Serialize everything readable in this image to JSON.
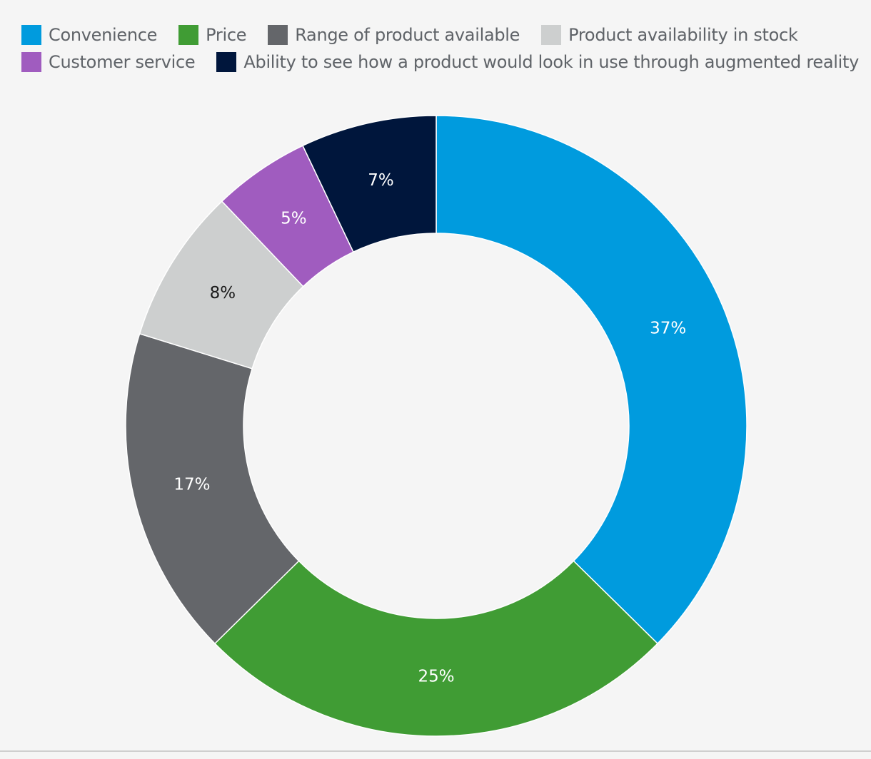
{
  "chart_data": {
    "type": "pie",
    "variant": "donut",
    "legend_position": "top-left",
    "slices": [
      {
        "label": "Convenience",
        "value": 37,
        "display": "37%",
        "color": "#009bde",
        "text_color": "#ffffff"
      },
      {
        "label": "Price",
        "value": 25,
        "display": "25%",
        "color": "#409c34",
        "text_color": "#ffffff"
      },
      {
        "label": "Range of product available",
        "value": 17,
        "display": "17%",
        "color": "#64666a",
        "text_color": "#ffffff"
      },
      {
        "label": "Product availability in stock",
        "value": 8,
        "display": "8%",
        "color": "#cdcfcf",
        "text_color": "#1a1a1a"
      },
      {
        "label": "Customer service",
        "value": 5,
        "display": "5%",
        "color": "#a05cbf",
        "text_color": "#ffffff"
      },
      {
        "label": "Ability to see how a product would look in use through augmented reality",
        "value": 7,
        "display": "7%",
        "color": "#00163c",
        "text_color": "#ffffff"
      }
    ]
  }
}
